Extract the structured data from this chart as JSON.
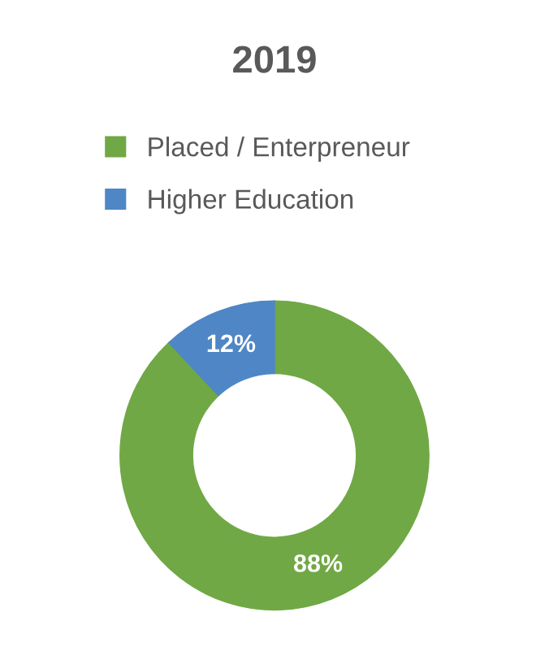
{
  "chart_data": {
    "type": "donut",
    "title": "2019",
    "categories": [
      "Placed / Enterpreneur",
      "Higher Education"
    ],
    "values": [
      88,
      12
    ],
    "colors": [
      "#70a845",
      "#4f86c6"
    ],
    "value_labels": [
      "88%",
      "12%"
    ],
    "legend": "top"
  }
}
